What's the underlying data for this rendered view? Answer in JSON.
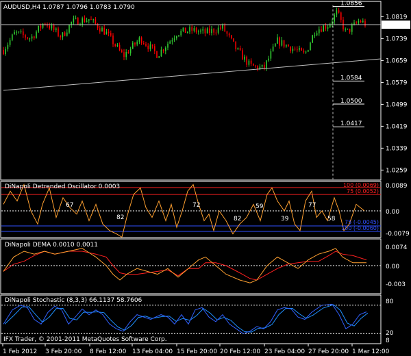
{
  "header": {
    "symbol_tf": "AUDUSD,H4",
    "ohlc": "1.0787 1.0796 1.0783 1.0790"
  },
  "main_axis": {
    "ticks": [
      "1.0819",
      "1.0739",
      "1.0659",
      "1.0579",
      "1.0499",
      "1.0419",
      "1.0339",
      "1.0259"
    ],
    "tick_values": [
      1.0819,
      1.0739,
      1.0659,
      1.0579,
      1.0499,
      1.0419,
      1.0339,
      1.0259
    ],
    "current_price_label": "1.0790",
    "current_price": 1.079
  },
  "levels": [
    {
      "label": "1.0856",
      "value": 1.0856
    },
    {
      "label": "1.0584",
      "value": 1.0584
    },
    {
      "label": "1.0500",
      "value": 1.05
    },
    {
      "label": "1.0417",
      "value": 1.0417
    }
  ],
  "oscillator": {
    "title": "DiNapoli Detrended Oscillator 0.0003",
    "axis": [
      "0.0089",
      "0.00",
      "-0.0079"
    ],
    "upper100": "100 (0.0069)",
    "upper75": "75 (0.0052)",
    "lower75": "75 (-0.0045)",
    "lower100": "100 (-0.0060)",
    "annotations": [
      "67",
      "82",
      "72",
      "82",
      "59",
      "39",
      "77",
      "58"
    ]
  },
  "dema": {
    "title": "DiNapoli DEMA 0.0010 0.0011",
    "axis": [
      "0.0074",
      "0.00",
      "-0.003"
    ]
  },
  "stochastic": {
    "title": "DiNapoli Stochastic (8,3,3) 66.1137 58.7606",
    "axis": [
      "80",
      "20",
      "8"
    ]
  },
  "copyright": "IFX Trader, © 2001-2011 MetaQuotes Software Corp.",
  "time_axis": [
    "1 Feb 2012",
    "3 Feb 20:00",
    "8 Feb 12:00",
    "13 Feb 04:00",
    "15 Feb 20:00",
    "20 Feb 12:00",
    "23 Feb 04:00",
    "27 Feb 20:00",
    "1 Mar 12:00"
  ],
  "colors": {
    "bull": "#32cd32",
    "bear": "#ff0000",
    "grid": "#c0c0c0",
    "osc_line": "#ffa030",
    "osc_upper": "#ff2020",
    "osc_lower": "#3050ff",
    "dema_fast": "#ffa030",
    "dema_slow": "#ff2020",
    "stoch_main": "#3060ff",
    "stoch_signal": "#1e90ff"
  }
}
